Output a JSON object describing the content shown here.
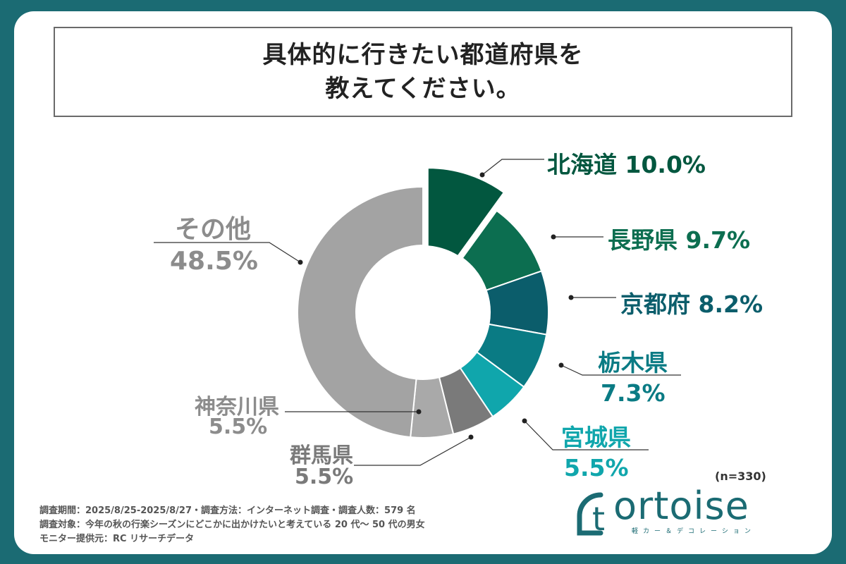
{
  "title": {
    "line1": "具体的に行きたい都道府県を",
    "line2": "教えてください。"
  },
  "chart_data": {
    "type": "pie",
    "variant": "donut",
    "categories": [
      "北海道",
      "長野県",
      "京都府",
      "栃木県",
      "宮城県",
      "群馬県",
      "神奈川県",
      "その他"
    ],
    "values": [
      10.0,
      9.7,
      8.2,
      7.3,
      5.5,
      5.5,
      5.5,
      48.5
    ],
    "value_labels": [
      "10.0%",
      "9.7%",
      "8.2%",
      "7.3%",
      "5.5%",
      "5.5%",
      "5.5%",
      "48.5%"
    ],
    "colors": [
      "#02573f",
      "#0c6e50",
      "#0b5d6b",
      "#0a7b84",
      "#10a6ac",
      "#7a7a7a",
      "#a9a9a9",
      "#a3a3a3"
    ],
    "label_colors": [
      "#02573f",
      "#0c6e50",
      "#0b5d6b",
      "#0a7b84",
      "#10a6ac",
      "#7a7a7a",
      "#8c8c8c",
      "#8c8c8c"
    ],
    "highlighted": "北海道"
  },
  "sample_size": "(n=330)",
  "footer": {
    "line1": "調査期間：2025/8/25-2025/8/27・調査方法：インターネット調査・調査人数：579 名",
    "line2": "調査対象：今年の秋の行楽シーズンにどこかに出かけたいと考えている 20 代〜 50 代の男女",
    "line3": "モニター提供元：RC リサーチデータ"
  },
  "logo": {
    "word": "ortoise",
    "letter": "t",
    "sub": "軽カー＆デコレーション"
  }
}
